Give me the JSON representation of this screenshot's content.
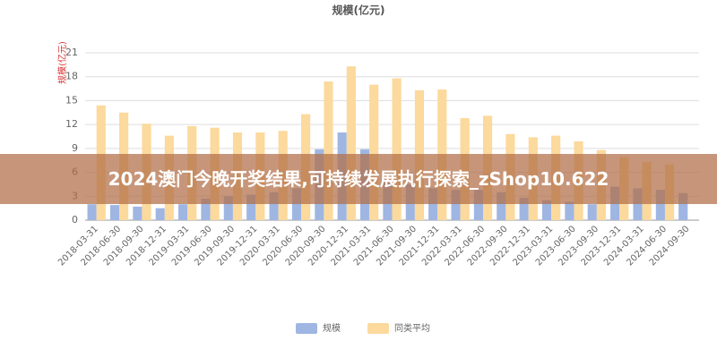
{
  "chart_data": {
    "type": "bar",
    "title": "规模(亿元)",
    "y_label": "规模(亿元)",
    "overlay_text": "2024澳门今晚开奖结果,可持续发展执行探索_zShop10.622",
    "categories": [
      "2018-03-31",
      "2018-06-30",
      "2018-09-30",
      "2018-12-31",
      "2019-03-31",
      "2019-06-30",
      "2019-09-30",
      "2019-12-31",
      "2020-03-31",
      "2020-06-30",
      "2020-09-30",
      "2020-12-31",
      "2021-03-31",
      "2021-06-30",
      "2021-09-30",
      "2021-12-31",
      "2022-03-31",
      "2022-06-30",
      "2022-09-30",
      "2022-12-31",
      "2023-03-31",
      "2023-06-30",
      "2023-09-30",
      "2023-12-31",
      "2024-03-31",
      "2024-06-30",
      "2024-09-30"
    ],
    "series": [
      {
        "name": "规模",
        "color": "#9fb6e2",
        "values": [
          2.0,
          1.9,
          1.7,
          1.5,
          2.0,
          2.7,
          3.0,
          3.2,
          3.5,
          4.0,
          8.9,
          11.0,
          8.9,
          5.0,
          4.5,
          4.0,
          3.8,
          3.8,
          3.5,
          2.8,
          2.5,
          2.3,
          2.0,
          4.2,
          4.0,
          3.8,
          3.4
        ]
      },
      {
        "name": "同类平均",
        "color": "#fcd99c",
        "values": [
          14.4,
          13.5,
          12.1,
          10.6,
          11.8,
          11.6,
          11.0,
          11.0,
          11.2,
          13.3,
          17.4,
          19.3,
          17.0,
          17.8,
          16.3,
          16.4,
          12.8,
          13.1,
          10.8,
          10.4,
          10.6,
          9.9,
          8.8,
          7.9,
          7.3,
          7.0,
          null
        ]
      }
    ],
    "ylim": [
      0,
      21
    ],
    "yticks": [
      0,
      3,
      6,
      9,
      12,
      15,
      18,
      21
    ],
    "grid": true,
    "legend": "bottom"
  }
}
